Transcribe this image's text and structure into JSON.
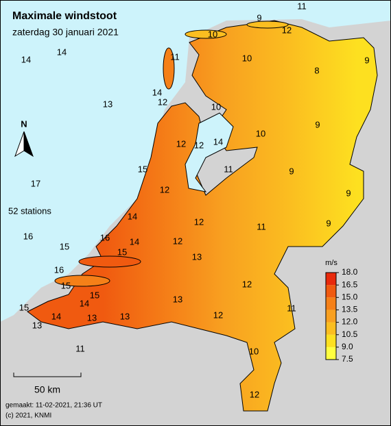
{
  "title": "Maximale windstoot",
  "subtitle": "zaterdag 30 januari 2021",
  "north": "N",
  "station_count": "52 stations",
  "scale_bar": "50 km",
  "legend": {
    "unit": "m/s",
    "ticks": [
      {
        "value": 18,
        "label": "18.0"
      },
      {
        "value": 16.5,
        "label": "16.5"
      },
      {
        "value": 15,
        "label": "15.0"
      },
      {
        "value": 13.5,
        "label": "13.5"
      },
      {
        "value": 12,
        "label": "12.0"
      },
      {
        "value": 10.5,
        "label": "10.5"
      },
      {
        "value": 9,
        "label": "9.0"
      },
      {
        "value": 7.5,
        "label": "7.5"
      }
    ],
    "colors": [
      "#e82a0c",
      "#f05a10",
      "#f58018",
      "#f8a020",
      "#fbbe20",
      "#fde020",
      "#ffff40"
    ]
  },
  "stations": [
    11,
    9,
    12,
    10,
    14,
    14,
    10,
    9,
    11,
    8,
    14,
    12,
    13,
    10,
    9,
    10,
    12,
    12,
    14,
    15,
    11,
    9,
    17,
    12,
    9,
    14,
    12,
    11,
    9,
    16,
    16,
    14,
    12,
    15,
    15,
    13,
    16,
    15,
    15,
    12,
    14,
    13,
    11,
    15,
    14,
    13,
    13,
    12,
    13,
    11,
    10,
    12
  ],
  "footer": [
    "gemaakt: 11-02-2021, 21:36 UT",
    "(c) 2021, KNMI"
  ]
}
